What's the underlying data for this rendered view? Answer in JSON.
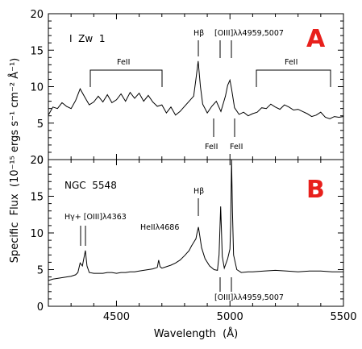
{
  "chart_data": [
    {
      "type": "line",
      "panel_label": "A",
      "object_name": "I  Zw  1",
      "xlim": [
        4200,
        5500
      ],
      "ylim": [
        0,
        20
      ],
      "y_ticks": [
        "0",
        "5",
        "10",
        "15",
        "20"
      ],
      "y_tick_values": [
        0,
        5,
        10,
        15,
        20
      ],
      "annotations": {
        "hb": "Hβ",
        "oiii": "[OIII]λλ4959,5007",
        "feii_left": "FeII",
        "feii_right": "FeII",
        "feii_low1": "FeII",
        "feii_low2": "FeII"
      },
      "series": [
        {
          "x": [
            4200,
            4220,
            4240,
            4260,
            4280,
            4300,
            4320,
            4340,
            4360,
            4380,
            4400,
            4420,
            4440,
            4460,
            4480,
            4500,
            4520,
            4540,
            4560,
            4580,
            4600,
            4620,
            4640,
            4660,
            4680,
            4700,
            4720,
            4740,
            4760,
            4780,
            4800,
            4820,
            4840,
            4850,
            4860,
            4870,
            4880,
            4900,
            4920,
            4940,
            4960,
            4980,
            4990,
            5000,
            5007,
            5020,
            5040,
            5060,
            5080,
            5100,
            5120,
            5140,
            5160,
            5180,
            5200,
            5220,
            5240,
            5260,
            5280,
            5300,
            5320,
            5340,
            5360,
            5380,
            5400,
            5420,
            5440,
            5460,
            5480,
            5500
          ],
          "y": [
            6.1,
            7.2,
            7.0,
            7.8,
            7.3,
            7.0,
            8.1,
            9.7,
            8.6,
            7.5,
            7.9,
            8.7,
            7.9,
            8.9,
            7.8,
            8.2,
            9.0,
            8.0,
            9.2,
            8.4,
            9.1,
            8.0,
            8.8,
            7.9,
            7.3,
            7.5,
            6.4,
            7.2,
            6.1,
            6.6,
            7.3,
            8.0,
            8.7,
            11.0,
            13.5,
            10.0,
            7.6,
            6.4,
            7.3,
            8.0,
            6.6,
            8.7,
            10.2,
            10.9,
            9.7,
            7.1,
            6.2,
            6.5,
            6.0,
            6.3,
            6.5,
            7.1,
            7.0,
            7.6,
            7.2,
            6.9,
            7.5,
            7.2,
            6.8,
            6.9,
            6.6,
            6.3,
            5.9,
            6.1,
            6.5,
            5.8,
            5.6,
            5.9,
            5.8,
            5.9
          ]
        }
      ]
    },
    {
      "type": "line",
      "panel_label": "B",
      "object_name": "NGC  5548",
      "xlim": [
        4200,
        5500
      ],
      "ylim": [
        0,
        20
      ],
      "x_ticks": [
        "4500",
        "5000",
        "5500"
      ],
      "x_tick_values": [
        4500,
        5000,
        5500
      ],
      "y_ticks": [
        "0",
        "5",
        "10",
        "15",
        "20"
      ],
      "y_tick_values": [
        0,
        5,
        10,
        15,
        20
      ],
      "xlabel": "Wavelength  (Å)",
      "ylabel": "Specific  Flux  (10⁻¹⁵ ergs s⁻¹ cm⁻² Å⁻¹)",
      "annotations": {
        "hg": "Hγ+ [OIII]λ4363",
        "heii": "HeIIλ4686",
        "hb": "Hβ",
        "oiii": "[OIII]λλ4959,5007"
      },
      "series": [
        {
          "x": [
            4200,
            4220,
            4240,
            4260,
            4280,
            4300,
            4320,
            4330,
            4340,
            4350,
            4363,
            4370,
            4380,
            4400,
            4420,
            4440,
            4460,
            4480,
            4500,
            4520,
            4540,
            4560,
            4580,
            4600,
            4620,
            4640,
            4660,
            4680,
            4686,
            4692,
            4700,
            4720,
            4740,
            4760,
            4780,
            4800,
            4820,
            4830,
            4840,
            4850,
            4855,
            4861,
            4867,
            4875,
            4890,
            4910,
            4930,
            4945,
            4952,
            4959,
            4966,
            4975,
            4990,
            5000,
            5003,
            5007,
            5011,
            5016,
            5030,
            5050,
            5080,
            5100,
            5150,
            5200,
            5250,
            5300,
            5350,
            5400,
            5450,
            5500
          ],
          "y": [
            3.5,
            3.7,
            3.8,
            3.9,
            4.0,
            4.1,
            4.3,
            4.6,
            5.9,
            5.5,
            7.6,
            5.5,
            4.6,
            4.5,
            4.5,
            4.5,
            4.6,
            4.6,
            4.5,
            4.6,
            4.6,
            4.7,
            4.7,
            4.8,
            4.9,
            5.0,
            5.1,
            5.3,
            6.3,
            5.4,
            5.2,
            5.4,
            5.6,
            5.9,
            6.3,
            6.9,
            7.6,
            8.2,
            8.7,
            9.2,
            10.0,
            10.8,
            9.6,
            8.0,
            6.5,
            5.5,
            5.0,
            4.9,
            7.0,
            13.6,
            6.8,
            5.2,
            6.5,
            7.8,
            11.0,
            20.0,
            13.0,
            7.0,
            5.0,
            4.6,
            4.7,
            4.7,
            4.8,
            4.9,
            4.8,
            4.7,
            4.8,
            4.8,
            4.7,
            4.7
          ]
        }
      ]
    }
  ]
}
